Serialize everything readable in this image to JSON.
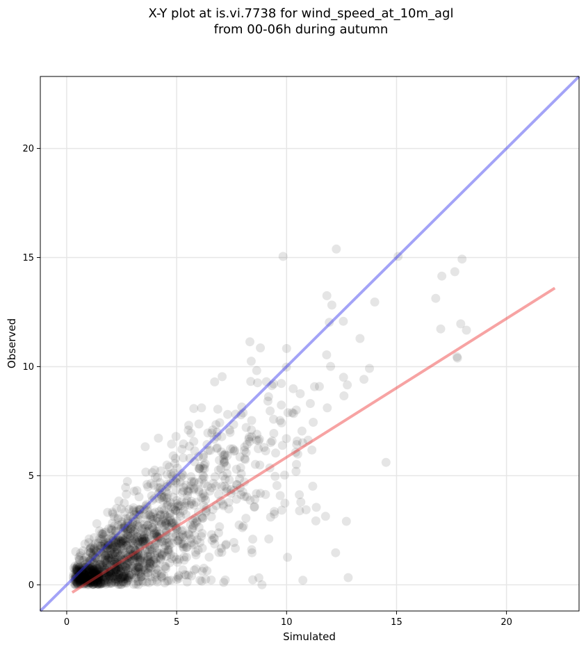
{
  "chart_data": {
    "type": "scatter",
    "title_line1": "X-Y plot at is.vi.7738 for wind_speed_at_10m_agl",
    "title_line2": "from 00-06h during autumn",
    "xlabel": "Simulated",
    "ylabel": "Observed",
    "xlim": [
      -1.2,
      23.3
    ],
    "ylim": [
      -1.2,
      23.3
    ],
    "xticks": [
      0,
      5,
      10,
      15,
      20
    ],
    "yticks": [
      0,
      5,
      10,
      15,
      20
    ],
    "grid": true,
    "point_color": "#000000",
    "point_opacity": 0.1,
    "one_to_one_line": {
      "x": [
        -1.2,
        23.3
      ],
      "y": [
        -1.2,
        23.3
      ],
      "color": "#3333ee"
    },
    "fit_line": {
      "x": [
        0.25,
        22.2
      ],
      "y": [
        -0.35,
        13.6
      ],
      "color": "#ee3333"
    },
    "points": {
      "x": [],
      "y": []
    }
  }
}
